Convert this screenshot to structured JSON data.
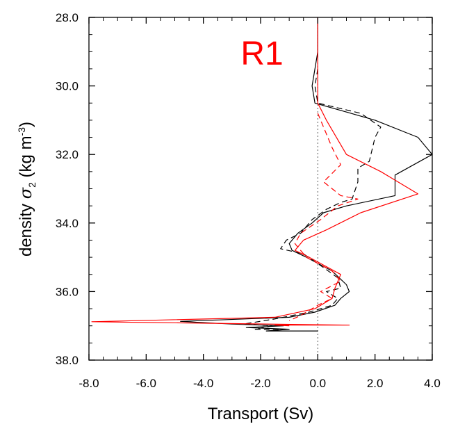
{
  "chart_data": {
    "type": "line",
    "title": "",
    "panel_label": "R1",
    "xlabel": "Transport (Sv)",
    "ylabel_prefix": "density",
    "ylabel_symbol": "σ",
    "ylabel_subscript": "2",
    "ylabel_unit": "(kg m",
    "ylabel_unit_exp": "-3",
    "ylabel_unit_end": ")",
    "xlim": [
      -8,
      4
    ],
    "ylim": [
      38,
      28
    ],
    "y_inverted": true,
    "x_ticks": [
      "-8.0",
      "-6.0",
      "-4.0",
      "-2.0",
      "0.0",
      "2.0",
      "4.0"
    ],
    "x_tick_values": [
      -8,
      -6,
      -4,
      -2,
      0,
      2,
      4
    ],
    "y_ticks": [
      "28.0",
      "30.0",
      "32.0",
      "34.0",
      "36.0",
      "38.0"
    ],
    "y_tick_values": [
      28,
      30,
      32,
      34,
      36,
      38
    ],
    "grid": false,
    "colors": {
      "black": "#000000",
      "red": "#ff0000",
      "panel_label": "#ff0000"
    },
    "series": [
      {
        "color": "#000000",
        "style": "solid",
        "points": [
          [
            0.0,
            28.0
          ],
          [
            0.0,
            29.0
          ],
          [
            -0.1,
            29.5
          ],
          [
            -0.2,
            30.0
          ],
          [
            -0.1,
            30.5
          ],
          [
            2.0,
            31.0
          ],
          [
            3.5,
            31.5
          ],
          [
            4.0,
            32.0
          ],
          [
            2.7,
            32.6
          ],
          [
            2.7,
            33.2
          ],
          [
            1.0,
            33.5
          ],
          [
            0.2,
            33.7
          ],
          [
            -0.2,
            34.0
          ],
          [
            -0.7,
            34.3
          ],
          [
            -1.0,
            34.6
          ],
          [
            -0.9,
            34.8
          ],
          [
            -0.4,
            35.0
          ],
          [
            0.5,
            35.4
          ],
          [
            1.0,
            35.8
          ],
          [
            1.1,
            36.0
          ],
          [
            0.8,
            36.2
          ],
          [
            0.6,
            36.4
          ],
          [
            -0.1,
            36.6
          ],
          [
            -1.0,
            36.75
          ],
          [
            -4.8,
            36.87
          ],
          [
            -3.0,
            36.95
          ],
          [
            -1.2,
            37.0
          ],
          [
            -2.5,
            37.05
          ],
          [
            -1.0,
            37.1
          ],
          [
            -1.8,
            37.15
          ],
          [
            0.0,
            37.15
          ]
        ]
      },
      {
        "color": "#000000",
        "style": "dashed",
        "points": [
          [
            0.0,
            29.5
          ],
          [
            -0.1,
            30.0
          ],
          [
            0.0,
            30.5
          ],
          [
            1.5,
            30.8
          ],
          [
            2.2,
            31.2
          ],
          [
            2.0,
            31.5
          ],
          [
            1.8,
            32.2
          ],
          [
            1.4,
            32.4
          ],
          [
            1.4,
            32.8
          ],
          [
            1.2,
            33.3
          ],
          [
            0.8,
            33.4
          ],
          [
            0.3,
            33.6
          ],
          [
            -0.2,
            33.9
          ],
          [
            -0.6,
            34.3
          ],
          [
            -1.1,
            34.5
          ],
          [
            -1.3,
            34.75
          ],
          [
            -0.5,
            34.9
          ],
          [
            0.2,
            35.3
          ],
          [
            0.7,
            35.6
          ],
          [
            0.8,
            35.9
          ],
          [
            0.3,
            36.0
          ],
          [
            0.7,
            36.2
          ],
          [
            0.5,
            36.4
          ],
          [
            -0.3,
            36.6
          ],
          [
            -1.5,
            36.8
          ],
          [
            -2.6,
            36.95
          ],
          [
            -1.6,
            37.0
          ],
          [
            -2.2,
            37.1
          ],
          [
            -1.2,
            37.1
          ]
        ]
      },
      {
        "color": "#ff0000",
        "style": "solid",
        "points": [
          [
            0.0,
            28.0
          ],
          [
            0.0,
            30.5
          ],
          [
            0.3,
            31.0
          ],
          [
            1.0,
            32.0
          ],
          [
            2.2,
            32.5
          ],
          [
            3.5,
            33.15
          ],
          [
            1.5,
            33.7
          ],
          [
            0.3,
            34.2
          ],
          [
            -0.5,
            34.5
          ],
          [
            -0.8,
            34.8
          ],
          [
            -0.3,
            35.0
          ],
          [
            0.8,
            35.5
          ],
          [
            0.6,
            35.9
          ],
          [
            0.5,
            36.2
          ],
          [
            -0.1,
            36.5
          ],
          [
            -1.5,
            36.75
          ],
          [
            -7.9,
            36.88
          ],
          [
            1.1,
            36.98
          ],
          [
            -1.5,
            36.98
          ],
          [
            -1.0,
            37.0
          ]
        ]
      },
      {
        "color": "#ff0000",
        "style": "dashed",
        "points": [
          [
            0.0,
            30.8
          ],
          [
            0.5,
            31.8
          ],
          [
            0.8,
            32.3
          ],
          [
            0.2,
            32.8
          ],
          [
            0.8,
            33.2
          ],
          [
            1.4,
            33.3
          ],
          [
            0.7,
            33.5
          ],
          [
            0.1,
            33.9
          ],
          [
            -0.6,
            34.3
          ],
          [
            -0.8,
            34.6
          ],
          [
            -0.4,
            35.0
          ],
          [
            0.5,
            35.4
          ],
          [
            0.8,
            35.7
          ],
          [
            0.1,
            36.0
          ],
          [
            0.5,
            36.2
          ],
          [
            0.0,
            36.4
          ],
          [
            -0.6,
            36.7
          ],
          [
            -1.0,
            36.85
          ]
        ]
      }
    ]
  }
}
